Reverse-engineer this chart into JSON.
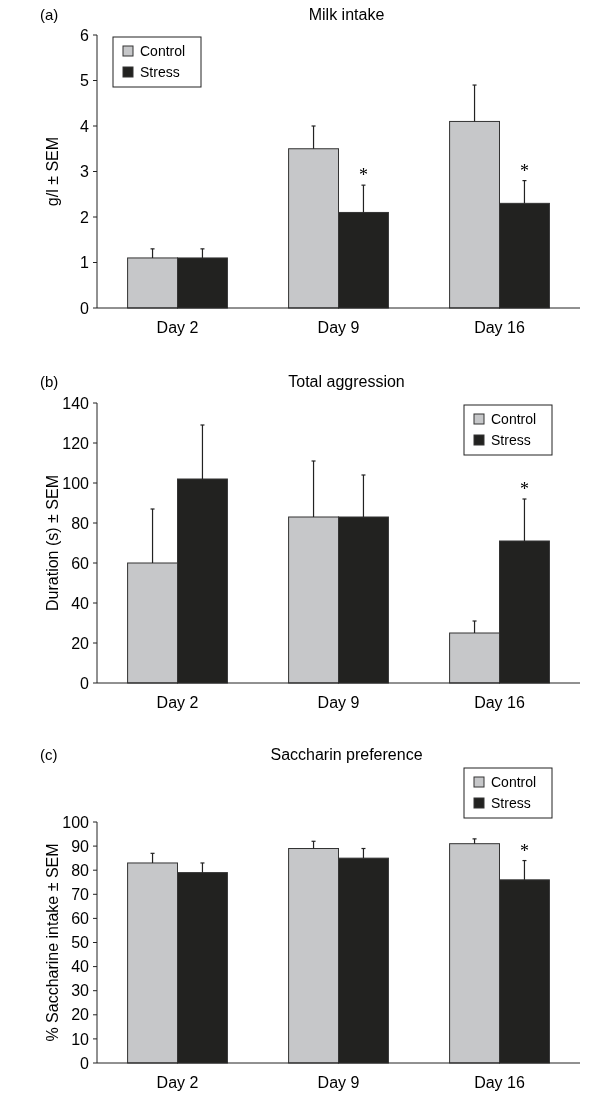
{
  "chart_data": [
    {
      "type": "bar",
      "title": "Milk intake",
      "ylabel": "g/l ± SEM",
      "categories": [
        "Day 2",
        "Day 9",
        "Day 16"
      ],
      "ylim": [
        0,
        6
      ],
      "yticks": [
        0,
        1,
        2,
        3,
        4,
        5,
        6
      ],
      "legend": "top left",
      "series": [
        {
          "name": "Control",
          "color": "#c6c7c9",
          "values": [
            1.1,
            3.5,
            4.1
          ],
          "errors": [
            [
              1.1,
              1.3
            ],
            [
              3.5,
              4.0
            ],
            [
              4.1,
              4.9
            ]
          ]
        },
        {
          "name": "Stress",
          "color": "#222220",
          "values": [
            1.1,
            2.1,
            2.3
          ],
          "errors": [
            [
              1.1,
              1.3
            ],
            [
              2.1,
              2.7
            ],
            [
              2.3,
              2.8
            ]
          ]
        }
      ],
      "annotations": [
        "(a)",
        {
          "text": "*",
          "x": "Day 9",
          "y": 2.1
        },
        {
          "text": "*",
          "x": "Day 16",
          "y": 2.3
        }
      ]
    },
    {
      "type": "bar",
      "title": "Total aggression",
      "ylabel": "Duration (s) ± SEM",
      "categories": [
        "Day 2",
        "Day 9",
        "Day 16"
      ],
      "ylim": [
        0,
        140
      ],
      "yticks": [
        0,
        20,
        40,
        60,
        80,
        100,
        120,
        140
      ],
      "legend": "top right",
      "series": [
        {
          "name": "Control",
          "color": "#c6c7c9",
          "values": [
            60,
            83,
            25
          ],
          "errors": [
            [
              60,
              87
            ],
            [
              83,
              111
            ],
            [
              25,
              31
            ]
          ]
        },
        {
          "name": "Stress",
          "color": "#222220",
          "values": [
            102,
            83,
            71
          ],
          "errors": [
            [
              102,
              129
            ],
            [
              83,
              104
            ],
            [
              71,
              92
            ]
          ]
        }
      ],
      "annotations": [
        "(b)",
        {
          "text": "*",
          "x": "Day 16",
          "y": 71
        }
      ]
    },
    {
      "type": "bar",
      "title": "Saccharin preference",
      "ylabel": "% Saccharine intake ± SEM",
      "categories": [
        "Day 2",
        "Day 9",
        "Day 16"
      ],
      "ylim": [
        0,
        100
      ],
      "yticks": [
        0,
        10,
        20,
        30,
        40,
        50,
        60,
        70,
        80,
        90,
        100
      ],
      "legend": "top right",
      "series": [
        {
          "name": "Control",
          "color": "#c6c7c9",
          "values": [
            83,
            89,
            91
          ],
          "errors": [
            [
              83,
              87
            ],
            [
              89,
              92
            ],
            [
              91,
              93
            ]
          ]
        },
        {
          "name": "Stress",
          "color": "#222220",
          "values": [
            79,
            85,
            76
          ],
          "errors": [
            [
              79,
              83
            ],
            [
              85,
              89
            ],
            [
              76,
              84
            ]
          ]
        }
      ],
      "annotations": [
        "(c)",
        {
          "text": "*",
          "x": "Day 16",
          "y": 76
        }
      ]
    }
  ]
}
